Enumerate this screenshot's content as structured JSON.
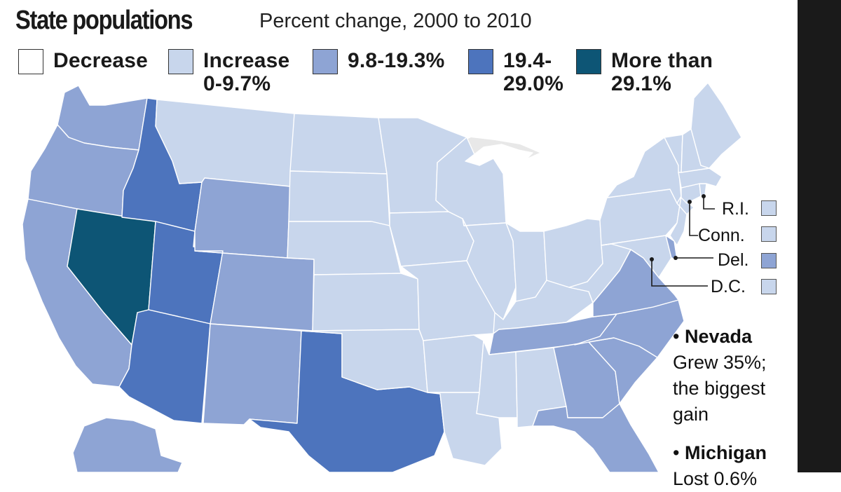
{
  "title": "State populations",
  "subtitle": "Percent change, 2000 to 2010",
  "colors": {
    "decrease": "#ffffff",
    "increase_low": "#c8d6ec",
    "mid": "#8ea4d4",
    "high": "#4d74bd",
    "top": "#0d5575"
  },
  "legend": [
    {
      "label": "Decrease",
      "color_key": "decrease"
    },
    {
      "label": "Increase\n0-9.7%",
      "color_key": "increase_low"
    },
    {
      "label": "9.8-19.3%",
      "color_key": "mid"
    },
    {
      "label": "19.4-\n29.0%",
      "color_key": "high"
    },
    {
      "label": "More than\n29.1%",
      "color_key": "top"
    }
  ],
  "callouts": [
    {
      "label": "R.I.",
      "color_key": "increase_low"
    },
    {
      "label": "Conn.",
      "color_key": "increase_low"
    },
    {
      "label": "Del.",
      "color_key": "mid"
    },
    {
      "label": "D.C.",
      "color_key": "increase_low"
    }
  ],
  "notes": [
    {
      "head": "Nevada",
      "body": "Grew 35%;\nthe biggest\ngain"
    },
    {
      "head": "Michigan",
      "body": "Lost 0.6%"
    }
  ],
  "states": [
    {
      "abbr": "WA",
      "color_key": "mid"
    },
    {
      "abbr": "OR",
      "color_key": "mid"
    },
    {
      "abbr": "CA",
      "color_key": "mid"
    },
    {
      "abbr": "NV",
      "color_key": "top"
    },
    {
      "abbr": "ID",
      "color_key": "high"
    },
    {
      "abbr": "UT",
      "color_key": "high"
    },
    {
      "abbr": "AZ",
      "color_key": "high"
    },
    {
      "abbr": "MT",
      "color_key": "increase_low"
    },
    {
      "abbr": "WY",
      "color_key": "mid"
    },
    {
      "abbr": "CO",
      "color_key": "mid"
    },
    {
      "abbr": "NM",
      "color_key": "mid"
    },
    {
      "abbr": "TX",
      "color_key": "high"
    },
    {
      "abbr": "ND",
      "color_key": "increase_low"
    },
    {
      "abbr": "SD",
      "color_key": "increase_low"
    },
    {
      "abbr": "NE",
      "color_key": "increase_low"
    },
    {
      "abbr": "KS",
      "color_key": "increase_low"
    },
    {
      "abbr": "OK",
      "color_key": "increase_low"
    },
    {
      "abbr": "MN",
      "color_key": "increase_low"
    },
    {
      "abbr": "IA",
      "color_key": "increase_low"
    },
    {
      "abbr": "MO",
      "color_key": "increase_low"
    },
    {
      "abbr": "AR",
      "color_key": "increase_low"
    },
    {
      "abbr": "LA",
      "color_key": "increase_low"
    },
    {
      "abbr": "WI",
      "color_key": "increase_low"
    },
    {
      "abbr": "IL",
      "color_key": "increase_low"
    },
    {
      "abbr": "MI",
      "color_key": "decrease"
    },
    {
      "abbr": "IN",
      "color_key": "increase_low"
    },
    {
      "abbr": "OH",
      "color_key": "increase_low"
    },
    {
      "abbr": "KY",
      "color_key": "increase_low"
    },
    {
      "abbr": "TN",
      "color_key": "mid"
    },
    {
      "abbr": "MS",
      "color_key": "increase_low"
    },
    {
      "abbr": "AL",
      "color_key": "increase_low"
    },
    {
      "abbr": "GA",
      "color_key": "mid"
    },
    {
      "abbr": "FL",
      "color_key": "mid"
    },
    {
      "abbr": "SC",
      "color_key": "mid"
    },
    {
      "abbr": "NC",
      "color_key": "mid"
    },
    {
      "abbr": "VA",
      "color_key": "mid"
    },
    {
      "abbr": "WV",
      "color_key": "increase_low"
    },
    {
      "abbr": "PA",
      "color_key": "increase_low"
    },
    {
      "abbr": "NY",
      "color_key": "increase_low"
    },
    {
      "abbr": "NJ",
      "color_key": "increase_low"
    },
    {
      "abbr": "MD",
      "color_key": "increase_low"
    },
    {
      "abbr": "DE",
      "color_key": "mid"
    },
    {
      "abbr": "CT",
      "color_key": "increase_low"
    },
    {
      "abbr": "RI",
      "color_key": "increase_low"
    },
    {
      "abbr": "MA",
      "color_key": "increase_low"
    },
    {
      "abbr": "VT",
      "color_key": "increase_low"
    },
    {
      "abbr": "NH",
      "color_key": "increase_low"
    },
    {
      "abbr": "ME",
      "color_key": "increase_low"
    },
    {
      "abbr": "AK",
      "color_key": "mid"
    }
  ]
}
